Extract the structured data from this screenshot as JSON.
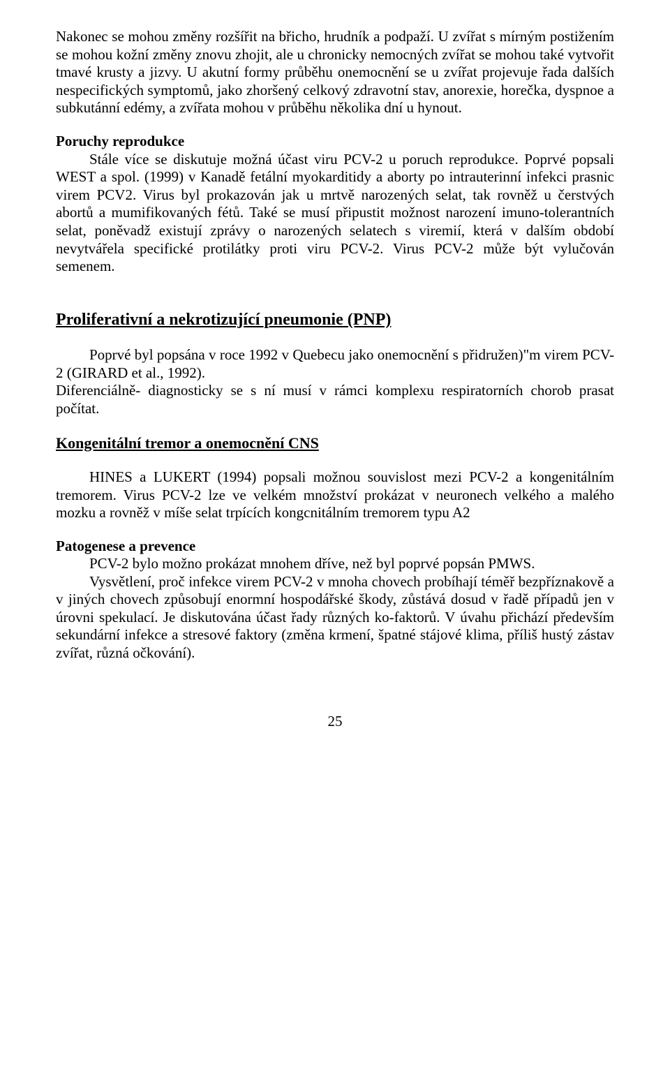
{
  "intro": {
    "p1": "Nakonec se mohou změny rozšířit na břicho, hrudník a podpaží. U zvířat s mírným postižením se mohou kožní změny znovu zhojit, ale u chronicky nemocných zvířat se mohou také vytvořit tmavé krusty a jizvy. U akutní formy průběhu onemocnění se u zvířat projevuje řada dalších nespecifických symptomů, jako zhoršený celkový zdravotní stav, anorexie, horečka, dyspnoe a subkutánní edémy, a zvířata mohou v průběhu několika dní u hynout."
  },
  "reproduction": {
    "heading": "Poruchy reprodukce",
    "body": "Stále více se diskutuje možná účast viru PCV-2 u poruch reprodukce. Poprvé popsali WEST a spol. (1999) v Kanadě fetální myokarditidy a aborty po intrauterinní infekci prasnic virem PCV2. Virus byl prokazován jak u mrtvě narozených selat, tak rovněž u čerstvých abortů a mumifikovaných fétů. Také se musí připustit možnost narození imuno-tolerantních selat, poněvadž existují zprávy o narozených selatech s viremií, která v dalším období nevytvářela specifické protilátky proti viru PCV-2. Virus PCV-2 může být vylučován semenem."
  },
  "pnp": {
    "heading": "Proliferativní a nekrotizující pneumonie (PNP)",
    "p1": "Poprvé byl popsána v roce 1992 v Quebecu jako onemocnění s přidružen)\"m virem PCV-2 (GIRARD et al., 1992).",
    "p2": "Diferenciálně- diagnosticky se s ní musí v rámci komplexu respiratorních chorob prasat počítat."
  },
  "cns": {
    "heading": "Kongenitální tremor a onemocnění CNS",
    "p1": "HINES a LUKERT (1994) popsali možnou souvislost mezi PCV-2 a kongenitálním tremorem. Virus PCV-2 lze ve velkém množství prokázat v neuronech velkého a malého mozku a rovněž v míše selat trpících kongcnitálním tremorem typu A2"
  },
  "pathogenesis": {
    "heading": "Patogenese a prevence",
    "p1": "PCV-2 bylo možno prokázat mnohem dříve, než byl poprvé popsán PMWS.",
    "p2": "Vysvětlení, proč infekce virem PCV-2 v mnoha chovech probíhají téměř bezpříznakově a v jiných chovech způsobují enormní hospodářské škody, zůstává dosud v řadě případů jen v úrovni spekulací. Je diskutována účast řady různých ko-faktorů. V úvahu přichází především sekundární infekce a stresové faktory (změna krmení, špatné stájové klima, příliš hustý zástav zvířat, různá očkování)."
  },
  "page_number": "25"
}
